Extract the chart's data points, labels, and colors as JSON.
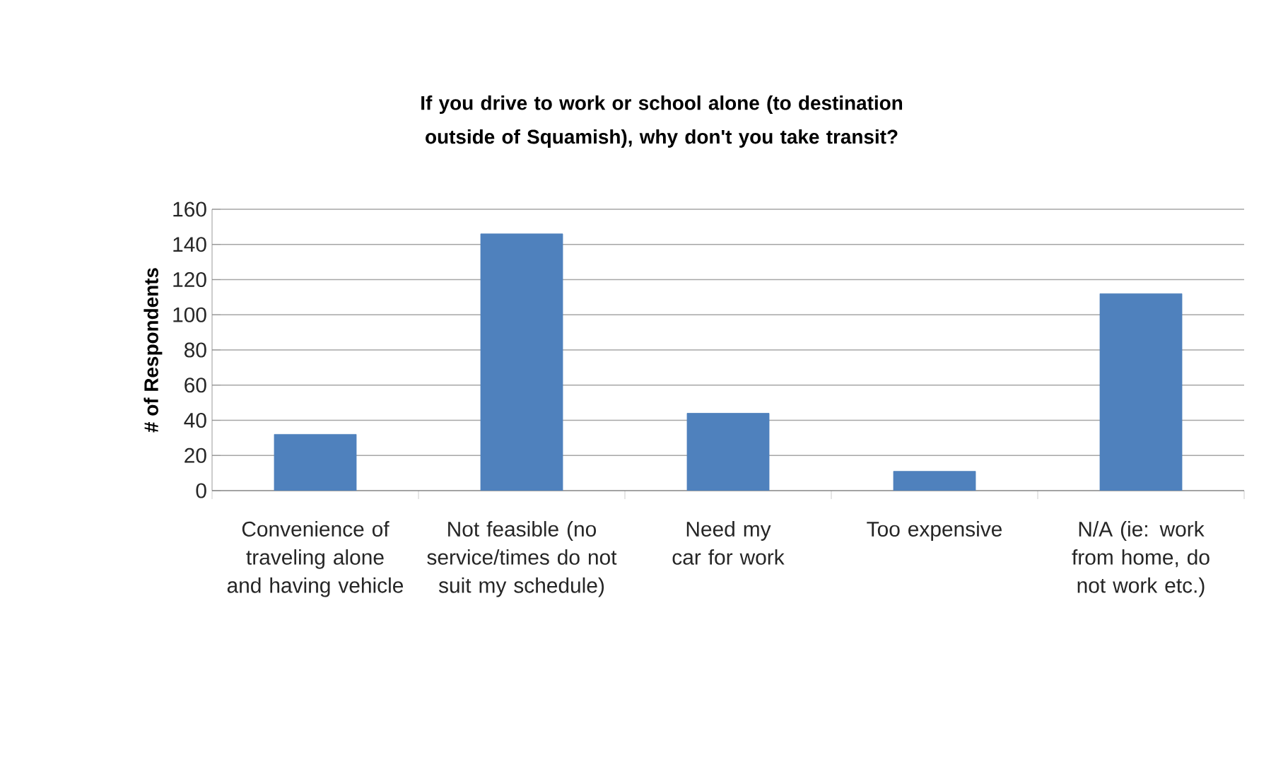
{
  "chart_data": {
    "type": "bar",
    "title": "If you drive to work or school alone (to destination outside of Squamish), why don't you take transit?",
    "ylabel": "# of Respondents",
    "categories": [
      "Convenience of traveling alone and having vehicle",
      "Not feasible (no service/times do not suit my schedule)",
      "Need my car for work",
      "Too expensive",
      "N/A (ie: work from home, do not work etc.)"
    ],
    "values": [
      32,
      146,
      44,
      11,
      112
    ],
    "color": "#4f81bd",
    "ylim": [
      0,
      160
    ],
    "yticks": [
      0,
      20,
      40,
      60,
      80,
      100,
      120,
      140,
      160
    ],
    "grid": "y"
  }
}
